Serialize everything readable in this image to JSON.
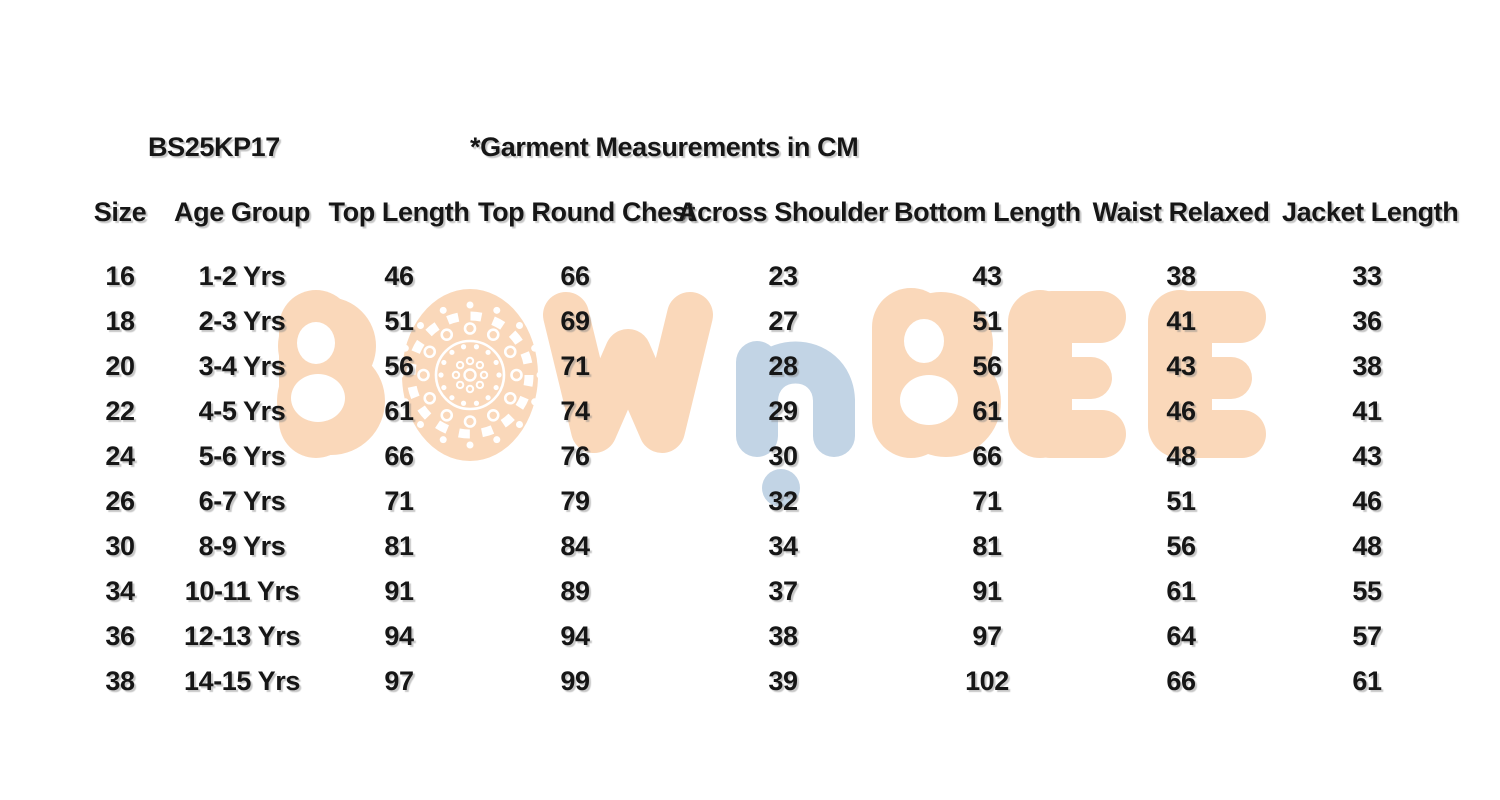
{
  "title": {
    "code": "BS25KP17",
    "note": "*Garment Measurements in CM"
  },
  "watermark": {
    "text": "BOWnBEE",
    "peach": "#fad8ba",
    "blue": "#c2d4e5",
    "mandala_icon": "mandala-medallion"
  },
  "table": {
    "columns": [
      "Size",
      "Age Group",
      "Top Length",
      "Top Round Chest",
      "Across Shoulder",
      "Bottom Length",
      "Waist Relaxed",
      "Jacket Length"
    ],
    "rows": [
      [
        "16",
        "1-2 Yrs",
        "46",
        "66",
        "23",
        "43",
        "38",
        "33"
      ],
      [
        "18",
        "2-3 Yrs",
        "51",
        "69",
        "27",
        "51",
        "41",
        "36"
      ],
      [
        "20",
        "3-4 Yrs",
        "56",
        "71",
        "28",
        "56",
        "43",
        "38"
      ],
      [
        "22",
        "4-5 Yrs",
        "61",
        "74",
        "29",
        "61",
        "46",
        "41"
      ],
      [
        "24",
        "5-6 Yrs",
        "66",
        "76",
        "30",
        "66",
        "48",
        "43"
      ],
      [
        "26",
        "6-7 Yrs",
        "71",
        "79",
        "32",
        "71",
        "51",
        "46"
      ],
      [
        "30",
        "8-9 Yrs",
        "81",
        "84",
        "34",
        "81",
        "56",
        "48"
      ],
      [
        "34",
        "10-11 Yrs",
        "91",
        "89",
        "37",
        "91",
        "61",
        "55"
      ],
      [
        "36",
        "12-13 Yrs",
        "94",
        "94",
        "38",
        "97",
        "64",
        "57"
      ],
      [
        "38",
        "14-15 Yrs",
        "97",
        "99",
        "39",
        "102",
        "66",
        "61"
      ]
    ]
  }
}
